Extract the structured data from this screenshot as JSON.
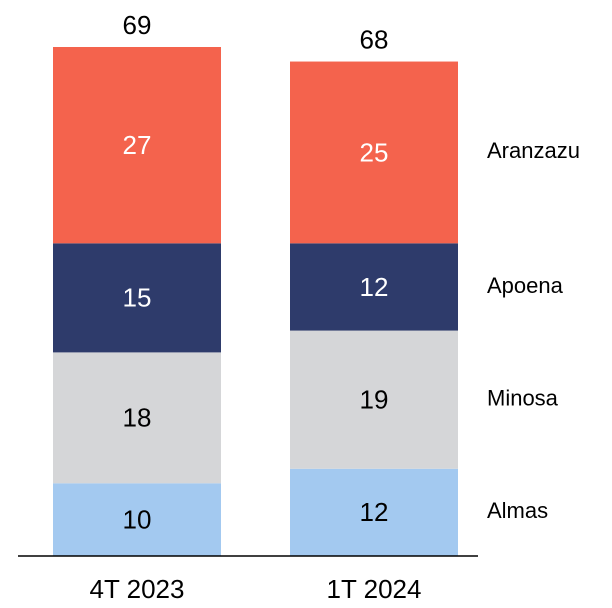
{
  "chart_data": {
    "type": "stacked_bar",
    "categories": [
      "4T 2023",
      "1T 2024"
    ],
    "series": [
      {
        "name": "Almas",
        "color": "#a3c9f0",
        "values": [
          10,
          12
        ]
      },
      {
        "name": "Minosa",
        "color": "#d5d6d8",
        "values": [
          18,
          19
        ]
      },
      {
        "name": "Apoena",
        "color": "#2e3b6b",
        "values": [
          15,
          12
        ]
      },
      {
        "name": "Aranzazu",
        "color": "#f4634d",
        "values": [
          27,
          25
        ]
      }
    ],
    "totals": [
      69,
      68
    ],
    "ylim": [
      0,
      70
    ]
  }
}
